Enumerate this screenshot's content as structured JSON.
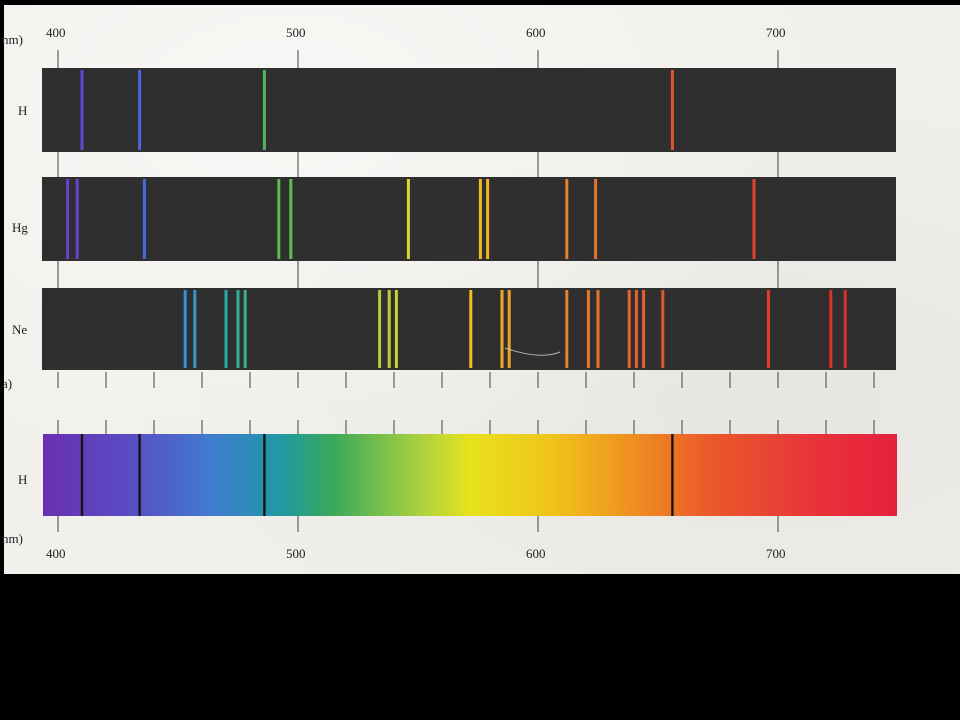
{
  "colors": {
    "dark_strip": "#2f2f30",
    "tick": "#444444",
    "absorption_line": "#151515"
  },
  "units_label_top": "nm)",
  "units_label_bottom": "nm)",
  "stray_label": "a)",
  "top_scale": {
    "wavelengths": [
      400,
      500,
      600,
      700
    ],
    "labels": [
      "400",
      "500",
      "600",
      "700"
    ]
  },
  "bottom_scale": {
    "wavelengths": [
      400,
      500,
      600,
      700
    ],
    "labels": [
      "400",
      "500",
      "600",
      "700"
    ]
  },
  "minor_scale_wavelengths": [
    400,
    420,
    440,
    460,
    480,
    500,
    520,
    540,
    560,
    580,
    600,
    620,
    640,
    660,
    680,
    700,
    720,
    740
  ],
  "emission_spectra": [
    {
      "element": "H",
      "lines_nm": [
        410,
        434,
        486,
        656
      ]
    },
    {
      "element": "Hg",
      "lines_nm": [
        404,
        408,
        436,
        492,
        497,
        546,
        576,
        579,
        612,
        624,
        690
      ]
    },
    {
      "element": "Ne",
      "lines_nm": [
        453,
        457,
        470,
        475,
        478,
        534,
        538,
        541,
        572,
        585,
        588,
        612,
        621,
        625,
        638,
        641,
        644,
        652,
        696,
        722,
        728
      ]
    }
  ],
  "absorption_spectrum": {
    "element": "H",
    "lines_nm": [
      410,
      434,
      486,
      656
    ]
  }
}
